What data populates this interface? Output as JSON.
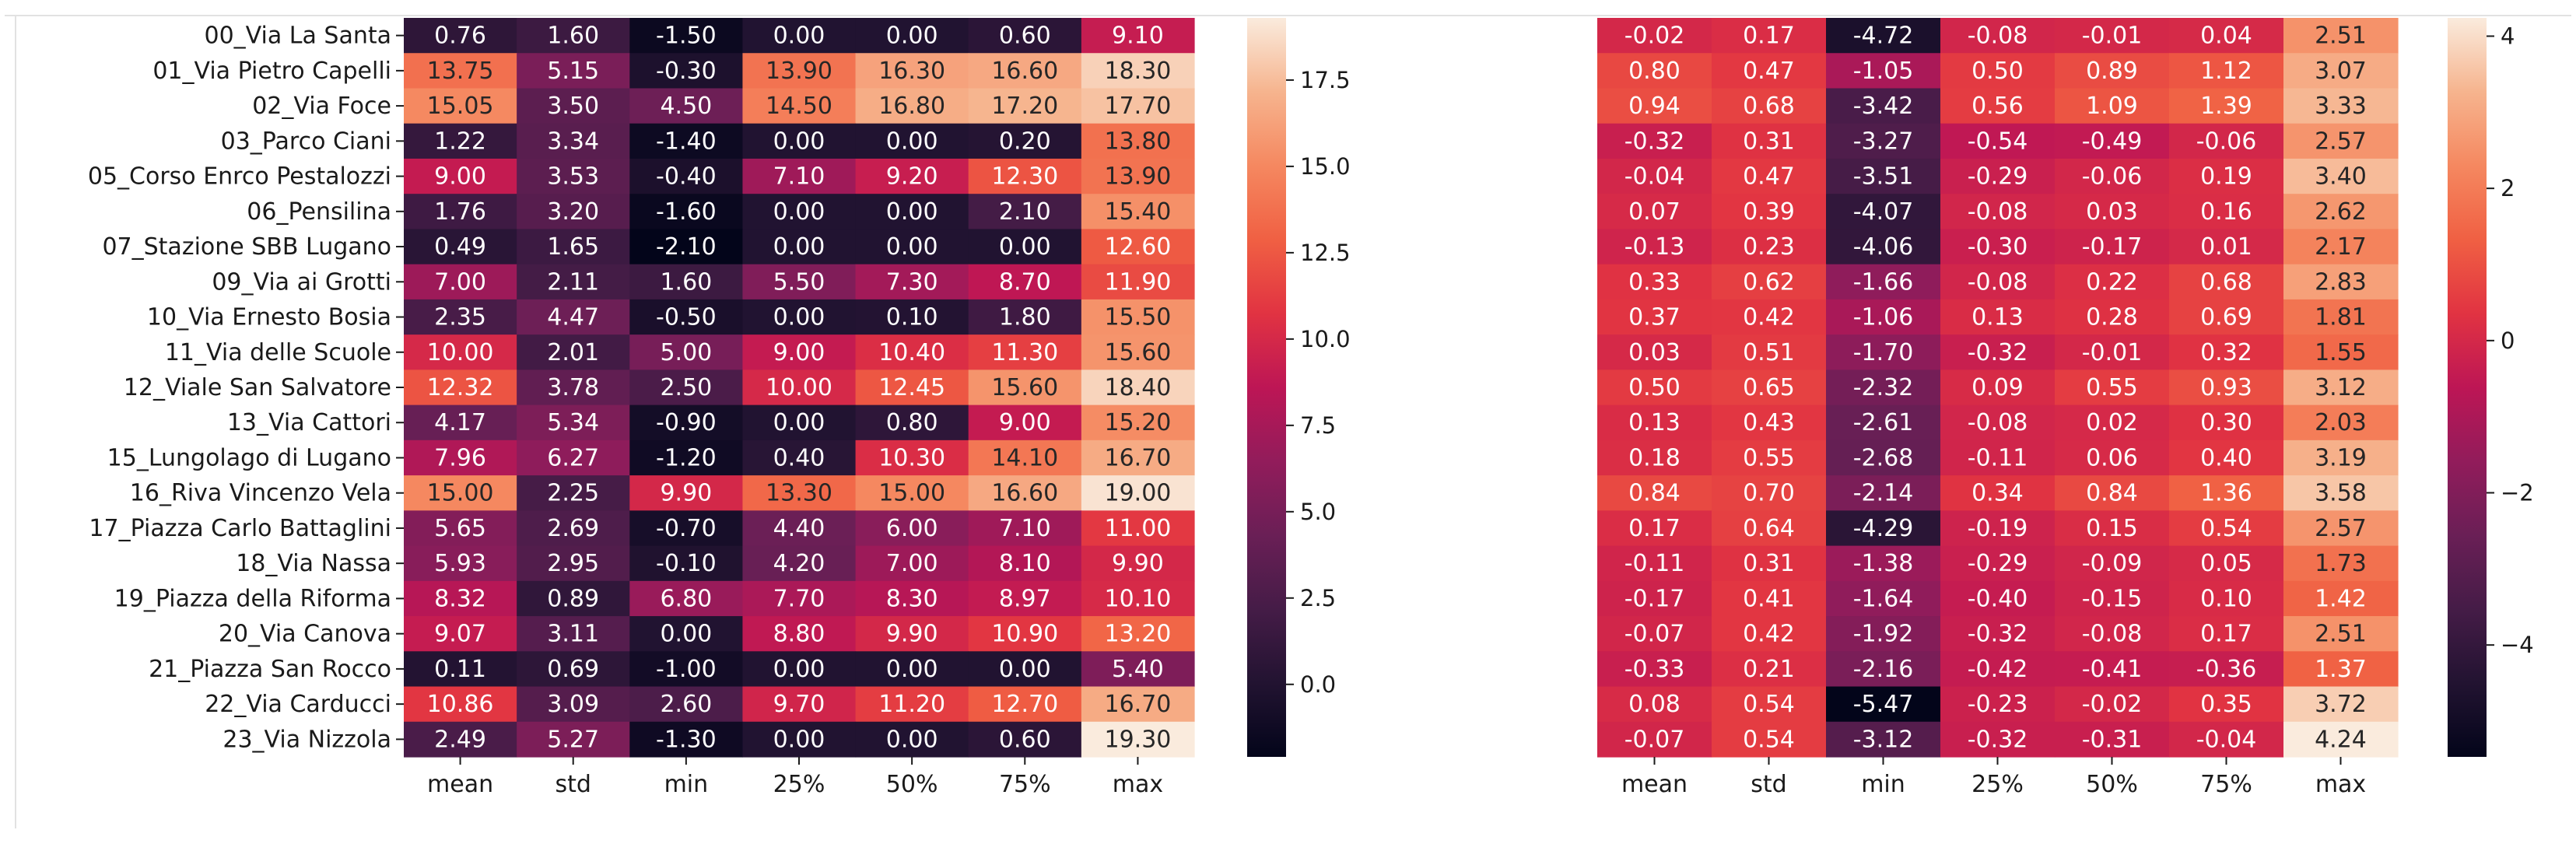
{
  "chart_data": [
    {
      "type": "heatmap",
      "title": "",
      "columns": [
        "mean",
        "std",
        "min",
        "25%",
        "50%",
        "75%",
        "max"
      ],
      "rows": [
        "00_Via La Santa",
        "01_Via Pietro Capelli",
        "02_Via Foce",
        "03_Parco Ciani",
        "05_Corso Enrco Pestalozzi",
        "06_Pensilina",
        "07_Stazione SBB Lugano",
        "09_Via ai Grotti",
        "10_Via Ernesto Bosia",
        "11_Via delle Scuole",
        "12_Viale San Salvatore",
        "13_Via Cattori",
        "15_Lungolago di Lugano",
        "16_Riva Vincenzo Vela",
        "17_Piazza Carlo Battaglini",
        "18_Via Nassa",
        "19_Piazza della Riforma",
        "20_Via Canova",
        "21_Piazza San Rocco",
        "22_Via Carducci",
        "23_Via Nizzola"
      ],
      "values": [
        [
          "0.76",
          "1.60",
          "-1.50",
          "0.00",
          "0.00",
          "0.60",
          "9.10"
        ],
        [
          "13.75",
          "5.15",
          "-0.30",
          "13.90",
          "16.30",
          "16.60",
          "18.30"
        ],
        [
          "15.05",
          "3.50",
          "4.50",
          "14.50",
          "16.80",
          "17.20",
          "17.70"
        ],
        [
          "1.22",
          "3.34",
          "-1.40",
          "0.00",
          "0.00",
          "0.20",
          "13.80"
        ],
        [
          "9.00",
          "3.53",
          "-0.40",
          "7.10",
          "9.20",
          "12.30",
          "13.90"
        ],
        [
          "1.76",
          "3.20",
          "-1.60",
          "0.00",
          "0.00",
          "2.10",
          "15.40"
        ],
        [
          "0.49",
          "1.65",
          "-2.10",
          "0.00",
          "0.00",
          "0.00",
          "12.60"
        ],
        [
          "7.00",
          "2.11",
          "1.60",
          "5.50",
          "7.30",
          "8.70",
          "11.90"
        ],
        [
          "2.35",
          "4.47",
          "-0.50",
          "0.00",
          "0.10",
          "1.80",
          "15.50"
        ],
        [
          "10.00",
          "2.01",
          "5.00",
          "9.00",
          "10.40",
          "11.30",
          "15.60"
        ],
        [
          "12.32",
          "3.78",
          "2.50",
          "10.00",
          "12.45",
          "15.60",
          "18.40"
        ],
        [
          "4.17",
          "5.34",
          "-0.90",
          "0.00",
          "0.80",
          "9.00",
          "15.20"
        ],
        [
          "7.96",
          "6.27",
          "-1.20",
          "0.40",
          "10.30",
          "14.10",
          "16.70"
        ],
        [
          "15.00",
          "2.25",
          "9.90",
          "13.30",
          "15.00",
          "16.60",
          "19.00"
        ],
        [
          "5.65",
          "2.69",
          "-0.70",
          "4.40",
          "6.00",
          "7.10",
          "11.00"
        ],
        [
          "5.93",
          "2.95",
          "-0.10",
          "4.20",
          "7.00",
          "8.10",
          "9.90"
        ],
        [
          "8.32",
          "0.89",
          "6.80",
          "7.70",
          "8.30",
          "8.97",
          "10.10"
        ],
        [
          "9.07",
          "3.11",
          "0.00",
          "8.80",
          "9.90",
          "10.90",
          "13.20"
        ],
        [
          "0.11",
          "0.69",
          "-1.00",
          "0.00",
          "0.00",
          "0.00",
          "5.40"
        ],
        [
          "10.86",
          "3.09",
          "2.60",
          "9.70",
          "11.20",
          "12.70",
          "16.70"
        ],
        [
          "2.49",
          "5.27",
          "-1.30",
          "0.00",
          "0.00",
          "0.60",
          "19.30"
        ]
      ],
      "color_range": [
        -2.1,
        19.3
      ],
      "colorbar_ticks": [
        "0.0",
        "2.5",
        "5.0",
        "7.5",
        "10.0",
        "12.5",
        "15.0",
        "17.5"
      ],
      "colorbar_tick_values": [
        0,
        2.5,
        5,
        7.5,
        10,
        12.5,
        15,
        17.5
      ],
      "colormap": "rocket",
      "show_row_labels": true
    },
    {
      "type": "heatmap",
      "title": "",
      "columns": [
        "mean",
        "std",
        "min",
        "25%",
        "50%",
        "75%",
        "max"
      ],
      "rows": [
        "00_Via La Santa",
        "01_Via Pietro Capelli",
        "02_Via Foce",
        "03_Parco Ciani",
        "05_Corso Enrco Pestalozzi",
        "06_Pensilina",
        "07_Stazione SBB Lugano",
        "09_Via ai Grotti",
        "10_Via Ernesto Bosia",
        "11_Via delle Scuole",
        "12_Viale San Salvatore",
        "13_Via Cattori",
        "15_Lungolago di Lugano",
        "16_Riva Vincenzo Vela",
        "17_Piazza Carlo Battaglini",
        "18_Via Nassa",
        "19_Piazza della Riforma",
        "20_Via Canova",
        "21_Piazza San Rocco",
        "22_Via Carducci",
        "23_Via Nizzola"
      ],
      "values": [
        [
          "-0.02",
          "0.17",
          "-4.72",
          "-0.08",
          "-0.01",
          "0.04",
          "2.51"
        ],
        [
          "0.80",
          "0.47",
          "-1.05",
          "0.50",
          "0.89",
          "1.12",
          "3.07"
        ],
        [
          "0.94",
          "0.68",
          "-3.42",
          "0.56",
          "1.09",
          "1.39",
          "3.33"
        ],
        [
          "-0.32",
          "0.31",
          "-3.27",
          "-0.54",
          "-0.49",
          "-0.06",
          "2.57"
        ],
        [
          "-0.04",
          "0.47",
          "-3.51",
          "-0.29",
          "-0.06",
          "0.19",
          "3.40"
        ],
        [
          "0.07",
          "0.39",
          "-4.07",
          "-0.08",
          "0.03",
          "0.16",
          "2.62"
        ],
        [
          "-0.13",
          "0.23",
          "-4.06",
          "-0.30",
          "-0.17",
          "0.01",
          "2.17"
        ],
        [
          "0.33",
          "0.62",
          "-1.66",
          "-0.08",
          "0.22",
          "0.68",
          "2.83"
        ],
        [
          "0.37",
          "0.42",
          "-1.06",
          "0.13",
          "0.28",
          "0.69",
          "1.81"
        ],
        [
          "0.03",
          "0.51",
          "-1.70",
          "-0.32",
          "-0.01",
          "0.32",
          "1.55"
        ],
        [
          "0.50",
          "0.65",
          "-2.32",
          "0.09",
          "0.55",
          "0.93",
          "3.12"
        ],
        [
          "0.13",
          "0.43",
          "-2.61",
          "-0.08",
          "0.02",
          "0.30",
          "2.03"
        ],
        [
          "0.18",
          "0.55",
          "-2.68",
          "-0.11",
          "0.06",
          "0.40",
          "3.19"
        ],
        [
          "0.84",
          "0.70",
          "-2.14",
          "0.34",
          "0.84",
          "1.36",
          "3.58"
        ],
        [
          "0.17",
          "0.64",
          "-4.29",
          "-0.19",
          "0.15",
          "0.54",
          "2.57"
        ],
        [
          "-0.11",
          "0.31",
          "-1.38",
          "-0.29",
          "-0.09",
          "0.05",
          "1.73"
        ],
        [
          "-0.17",
          "0.41",
          "-1.64",
          "-0.40",
          "-0.15",
          "0.10",
          "1.42"
        ],
        [
          "-0.07",
          "0.42",
          "-1.92",
          "-0.32",
          "-0.08",
          "0.17",
          "2.51"
        ],
        [
          "-0.33",
          "0.21",
          "-2.16",
          "-0.42",
          "-0.41",
          "-0.36",
          "1.37"
        ],
        [
          "0.08",
          "0.54",
          "-5.47",
          "-0.23",
          "-0.02",
          "0.35",
          "3.72"
        ],
        [
          "-0.07",
          "0.54",
          "-3.12",
          "-0.32",
          "-0.31",
          "-0.04",
          "4.24"
        ]
      ],
      "color_range": [
        -5.47,
        4.24
      ],
      "colorbar_ticks": [
        "−4",
        "−2",
        "0",
        "2",
        "4"
      ],
      "colorbar_tick_values": [
        -4,
        -2,
        0,
        2,
        4
      ],
      "colormap": "rocket",
      "show_row_labels": false
    }
  ]
}
